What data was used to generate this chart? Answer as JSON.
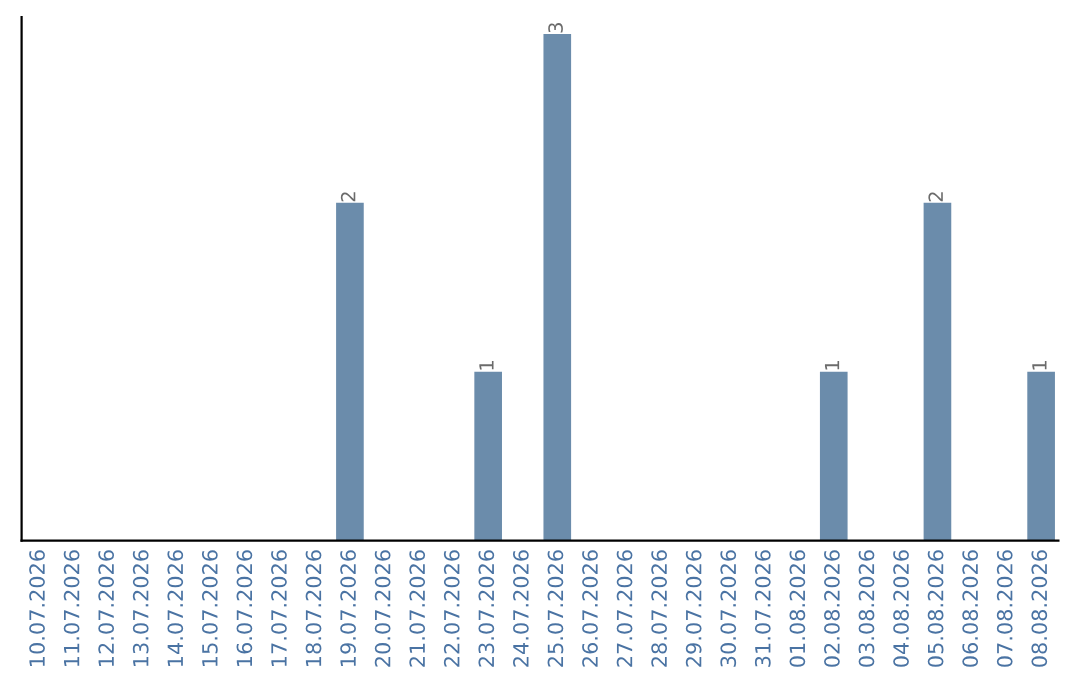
{
  "chart_data": {
    "type": "bar",
    "categories": [
      "10.07.2026",
      "11.07.2026",
      "12.07.2026",
      "13.07.2026",
      "14.07.2026",
      "15.07.2026",
      "16.07.2026",
      "17.07.2026",
      "18.07.2026",
      "19.07.2026",
      "20.07.2026",
      "21.07.2026",
      "22.07.2026",
      "23.07.2026",
      "24.07.2026",
      "25.07.2026",
      "26.07.2026",
      "27.07.2026",
      "28.07.2026",
      "29.07.2026",
      "30.07.2026",
      "31.07.2026",
      "01.08.2026",
      "02.08.2026",
      "03.08.2026",
      "04.08.2026",
      "05.08.2026",
      "06.08.2026",
      "07.08.2026",
      "08.08.2026"
    ],
    "values": [
      0,
      0,
      0,
      0,
      0,
      0,
      0,
      0,
      0,
      2,
      0,
      0,
      0,
      1,
      0,
      3,
      0,
      0,
      0,
      0,
      0,
      0,
      0,
      1,
      0,
      0,
      2,
      0,
      0,
      1
    ],
    "value_labels": [
      null,
      null,
      null,
      null,
      null,
      null,
      null,
      null,
      null,
      "2",
      null,
      null,
      null,
      "1",
      null,
      "3",
      null,
      null,
      null,
      null,
      null,
      null,
      null,
      "1",
      null,
      null,
      "2",
      null,
      null,
      "1"
    ],
    "color": "#6b8cab",
    "ylim": [
      0,
      3.1
    ],
    "tick_labels": "x",
    "grid": false,
    "legend": false
  }
}
